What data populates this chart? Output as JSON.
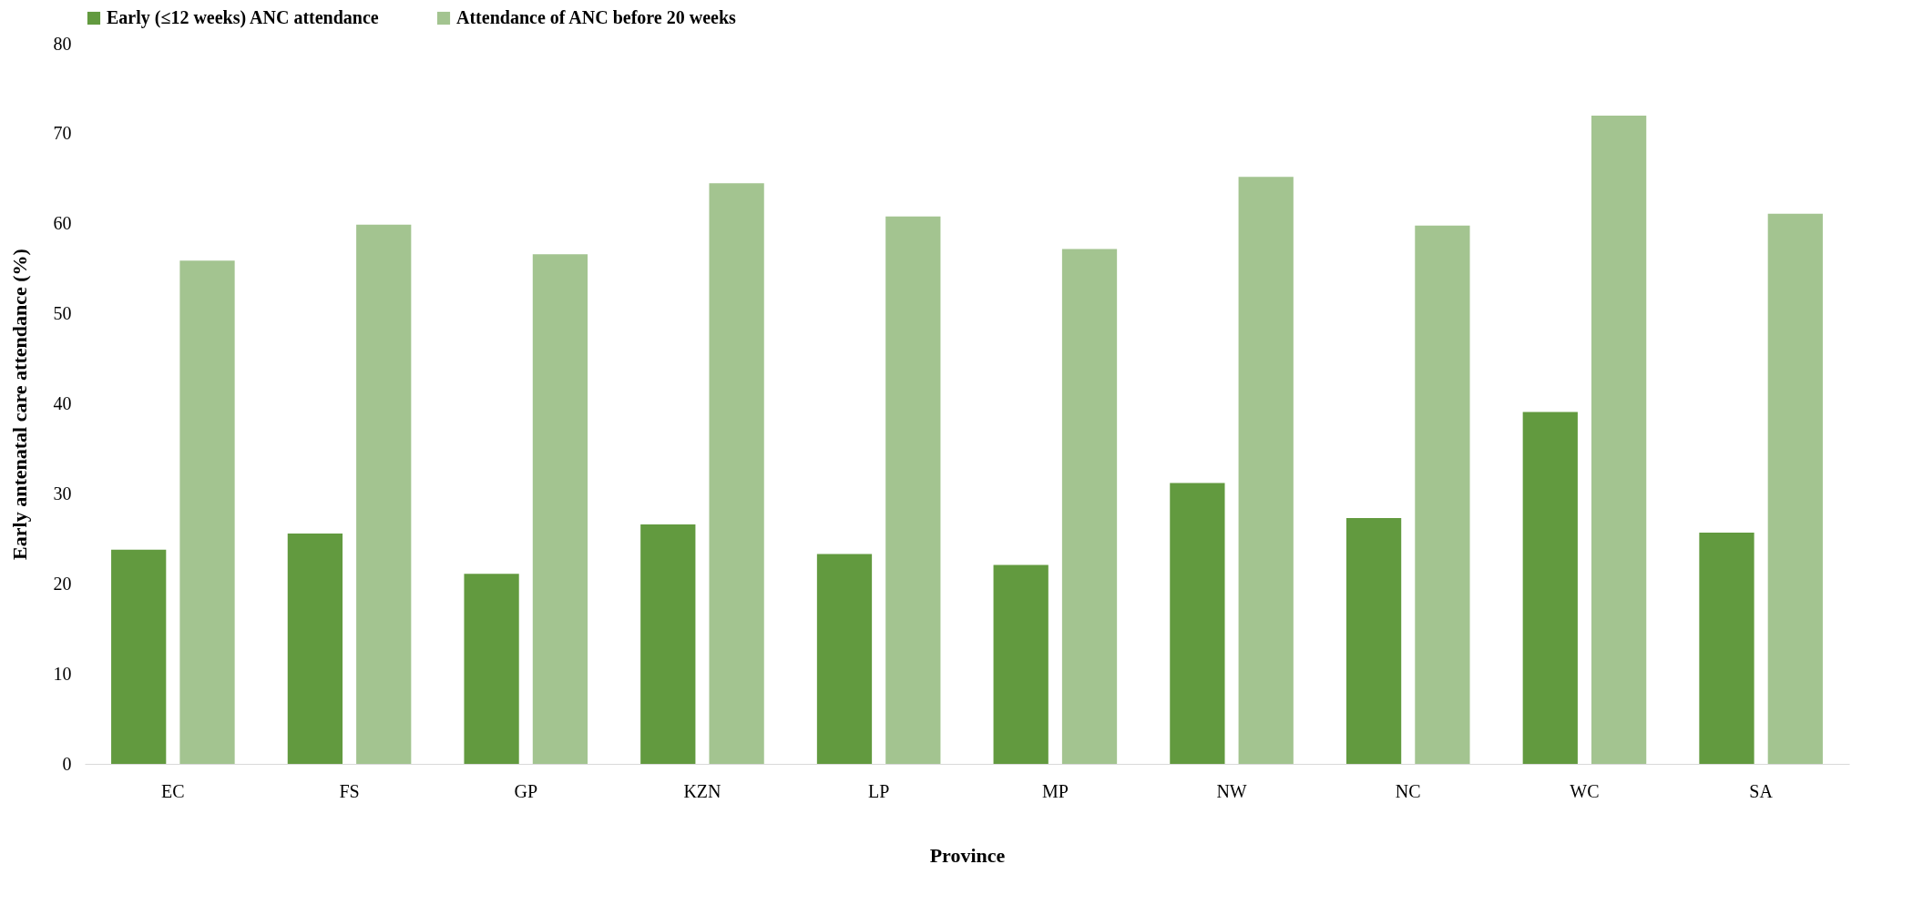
{
  "chart_data": {
    "type": "bar",
    "xlabel": "Province",
    "ylabel": "Early antenatal care attendance (%)",
    "categories": [
      "EC",
      "FS",
      "GP",
      "KZN",
      "LP",
      "MP",
      "NW",
      "NC",
      "WC",
      "SA"
    ],
    "series": [
      {
        "name": "Early (≤12 weeks) ANC attendance",
        "color": "#629a3f",
        "values": [
          23.8,
          25.6,
          21.1,
          26.6,
          23.3,
          22.1,
          31.2,
          27.3,
          39.1,
          25.7
        ]
      },
      {
        "name": "Attendance of ANC before 20 weeks",
        "color": "#a3c490",
        "values": [
          55.9,
          59.9,
          56.6,
          64.5,
          60.8,
          57.2,
          65.2,
          59.8,
          72.0,
          61.1
        ]
      }
    ],
    "ylim": [
      0,
      80
    ],
    "yticks": [
      0,
      10,
      20,
      30,
      40,
      50,
      60,
      70,
      80
    ],
    "grid": false,
    "legend": "top"
  }
}
